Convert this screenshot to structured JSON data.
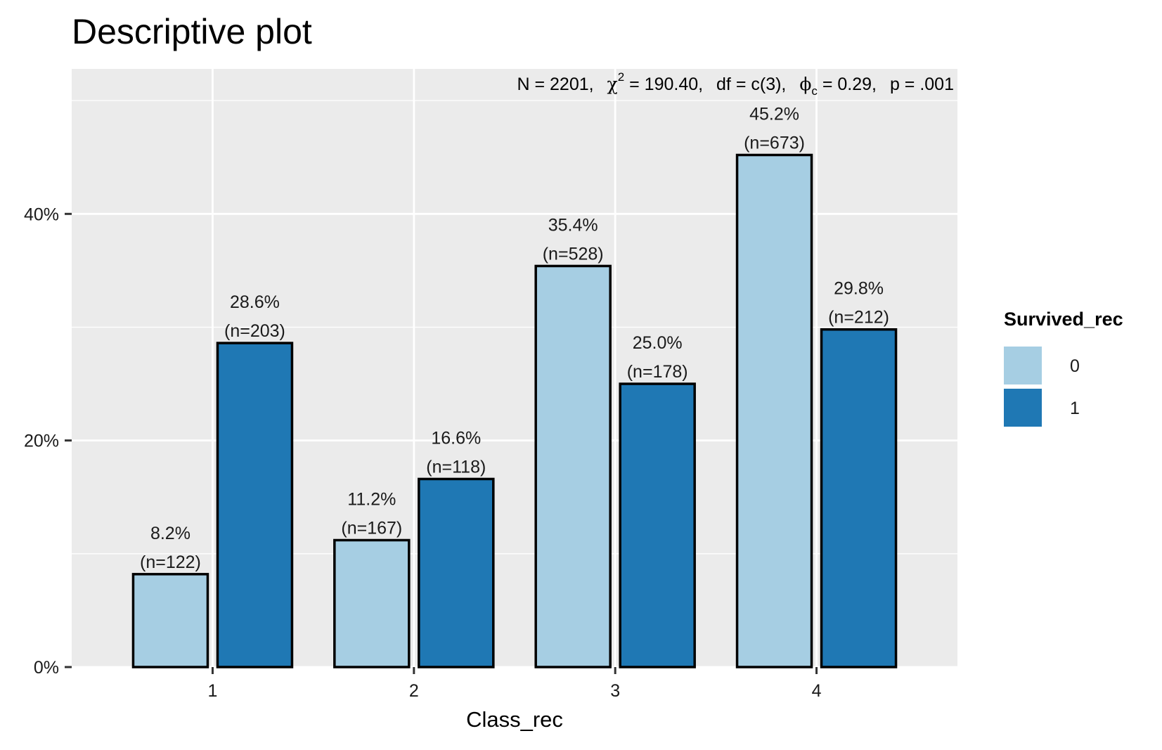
{
  "chart_data": {
    "type": "bar",
    "title": "Descriptive plot",
    "subtitle_parts": {
      "n": "N = 2201,",
      "chi": "χ",
      "chi_sup": "2",
      "chi_value": " = 190.40,",
      "df": "df = c(3),",
      "phi": "ϕ",
      "phi_sub": "c",
      "phi_value": " = 0.29,",
      "p": "p = .001"
    },
    "xlabel": "Class_rec",
    "ylabel": "",
    "categories": [
      "1",
      "2",
      "3",
      "4"
    ],
    "yticks": [
      0,
      20,
      40
    ],
    "ytick_labels": [
      "0%",
      "20%",
      "40%"
    ],
    "ylim": [
      0,
      52.8
    ],
    "grid": true,
    "legend_title": "Survived_rec",
    "legend_position": "right",
    "series": [
      {
        "name": "0",
        "color": "#a6cee3",
        "values": [
          8.2,
          11.2,
          35.4,
          45.2
        ],
        "pct_labels": [
          "8.2%",
          "11.2%",
          "35.4%",
          "45.2%"
        ],
        "n_labels": [
          "(n=122)",
          "(n=167)",
          "(n=528)",
          "(n=673)"
        ]
      },
      {
        "name": "1",
        "color": "#1f78b4",
        "values": [
          28.6,
          16.6,
          25.0,
          29.8
        ],
        "pct_labels": [
          "28.6%",
          "16.6%",
          "25.0%",
          "29.8%"
        ],
        "n_labels": [
          "(n=203)",
          "(n=118)",
          "(n=178)",
          "(n=212)"
        ]
      }
    ],
    "panel_color": "#ebebeb",
    "gridline_color": "#ffffff",
    "bar_outline_color": "#000000"
  }
}
